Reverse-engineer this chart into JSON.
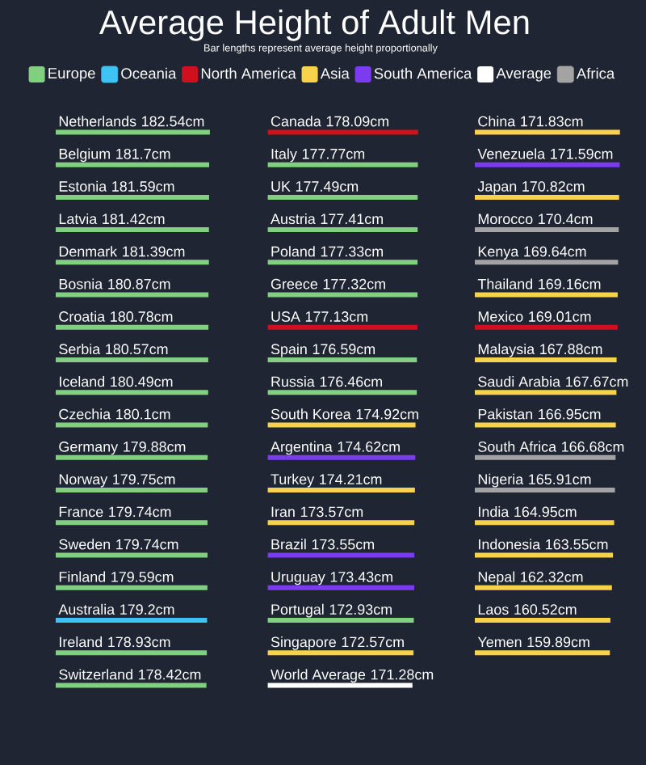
{
  "chart_data": [
    {
      "type": "bar",
      "orientation": "horizontal",
      "tick_labels": "y",
      "categories": [
        "Netherlands",
        "Belgium",
        "Estonia",
        "Latvia",
        "Denmark",
        "Bosnia",
        "Croatia",
        "Serbia",
        "Iceland",
        "Czechia",
        "Germany",
        "Norway",
        "France",
        "Sweden",
        "Finland",
        "Australia",
        "Ireland",
        "Switzerland"
      ],
      "series": [
        {
          "color": "#80d07f",
          "values": [
            182.54,
            181.7,
            181.59,
            181.42,
            181.39,
            180.87,
            180.78,
            180.57,
            180.49,
            180.1,
            179.88,
            179.75,
            179.74,
            179.74,
            179.59,
            null,
            178.93,
            178.42
          ],
          "value_labels": [
            "182.54cm",
            "181.7cm",
            "181.59cm",
            "181.42cm",
            "181.39cm",
            "180.87cm",
            "180.78cm",
            "180.57cm",
            "180.49cm",
            "180.1cm",
            "179.88cm",
            "179.75cm",
            "179.74cm",
            "179.74cm",
            "179.59cm",
            null,
            "178.93cm",
            "178.42cm"
          ]
        },
        {
          "color": "#3ec3f5",
          "values": [
            null,
            null,
            null,
            null,
            null,
            null,
            null,
            null,
            null,
            null,
            null,
            null,
            null,
            null,
            null,
            179.2,
            null,
            null
          ],
          "value_labels": [
            null,
            null,
            null,
            null,
            null,
            null,
            null,
            null,
            null,
            null,
            null,
            null,
            null,
            null,
            null,
            "179.2cm",
            null,
            null
          ]
        }
      ]
    },
    {
      "type": "bar",
      "orientation": "horizontal",
      "title": "Average Height of Adult Men",
      "subtitle": "Bar lengths represent average height proportionally",
      "legend": "top",
      "tick_labels": "y",
      "categories": [
        "Canada",
        "Italy",
        "UK",
        "Austria",
        "Poland",
        "Greece",
        "USA",
        "Spain",
        "Russia",
        "South Korea",
        "Argentina",
        "Turkey",
        "Iran",
        "Brazil",
        "Uruguay",
        "Portugal",
        "Singapore",
        "World Average"
      ],
      "series": [
        {
          "name": "Europe",
          "color": "#80d07f",
          "values": [
            null,
            177.77,
            177.49,
            177.41,
            177.33,
            177.32,
            null,
            176.59,
            176.46,
            null,
            null,
            null,
            null,
            null,
            null,
            172.93,
            null,
            null
          ],
          "value_labels": [
            null,
            "177.77cm",
            "177.49cm",
            "177.41cm",
            "177.33cm",
            "177.32cm",
            null,
            "176.59cm",
            "176.46cm",
            null,
            null,
            null,
            null,
            null,
            null,
            "172.93cm",
            null,
            null
          ]
        },
        {
          "name": "Oceania",
          "color": "#3ec3f5",
          "values": [
            null,
            null,
            null,
            null,
            null,
            null,
            null,
            null,
            null,
            null,
            null,
            null,
            null,
            null,
            null,
            null,
            null,
            null
          ]
        },
        {
          "name": "North America",
          "color": "#d0101c",
          "values": [
            178.09,
            null,
            null,
            null,
            null,
            null,
            177.13,
            null,
            null,
            null,
            null,
            null,
            null,
            null,
            null,
            null,
            null,
            null
          ],
          "value_labels": [
            "178.09cm",
            null,
            null,
            null,
            null,
            null,
            "177.13cm",
            null,
            null,
            null,
            null,
            null,
            null,
            null,
            null,
            null,
            null,
            null
          ]
        },
        {
          "name": "Asia",
          "color": "#f8d24a",
          "values": [
            null,
            null,
            null,
            null,
            null,
            null,
            null,
            null,
            null,
            174.92,
            null,
            174.21,
            173.57,
            null,
            null,
            null,
            172.57,
            null
          ],
          "value_labels": [
            null,
            null,
            null,
            null,
            null,
            null,
            null,
            null,
            null,
            "174.92cm",
            null,
            "174.21cm",
            "173.57cm",
            null,
            null,
            null,
            "172.57cm",
            null
          ]
        },
        {
          "name": "South America",
          "color": "#7b3cf0",
          "values": [
            null,
            null,
            null,
            null,
            null,
            null,
            null,
            null,
            null,
            null,
            174.62,
            null,
            null,
            173.55,
            173.43,
            null,
            null,
            null
          ],
          "value_labels": [
            null,
            null,
            null,
            null,
            null,
            null,
            null,
            null,
            null,
            null,
            "174.62cm",
            null,
            null,
            "173.55cm",
            "173.43cm",
            null,
            null,
            null
          ]
        },
        {
          "name": "Average",
          "color": "#ffffff",
          "values": [
            null,
            null,
            null,
            null,
            null,
            null,
            null,
            null,
            null,
            null,
            null,
            null,
            null,
            null,
            null,
            null,
            null,
            171.28
          ],
          "value_labels": [
            null,
            null,
            null,
            null,
            null,
            null,
            null,
            null,
            null,
            null,
            null,
            null,
            null,
            null,
            null,
            null,
            null,
            "171.28cm"
          ]
        },
        {
          "name": "Africa",
          "color": "#a3a3a3",
          "values": [
            null,
            null,
            null,
            null,
            null,
            null,
            null,
            null,
            null,
            null,
            null,
            null,
            null,
            null,
            null,
            null,
            null,
            null
          ]
        }
      ]
    },
    {
      "type": "bar",
      "orientation": "horizontal",
      "tick_labels": "y",
      "categories": [
        "China",
        "Venezuela",
        "Japan",
        "Morocco",
        "Kenya",
        "Thailand",
        "Mexico",
        "Malaysia",
        "Saudi Arabia",
        "Pakistan",
        "South Africa",
        "Nigeria",
        "India",
        "Indonesia",
        "Nepal",
        "Laos",
        "Yemen"
      ],
      "series": [
        {
          "color": "#d0101c",
          "values": [
            null,
            null,
            null,
            null,
            null,
            null,
            169.01,
            null,
            null,
            null,
            null,
            null,
            null,
            null,
            null,
            null,
            null
          ],
          "value_labels": [
            null,
            null,
            null,
            null,
            null,
            null,
            "169.01cm",
            null,
            null,
            null,
            null,
            null,
            null,
            null,
            null,
            null,
            null
          ]
        },
        {
          "color": "#f8d24a",
          "values": [
            171.83,
            null,
            170.82,
            null,
            null,
            169.16,
            null,
            167.88,
            167.67,
            166.95,
            null,
            null,
            164.95,
            163.55,
            162.32,
            160.52,
            159.89
          ],
          "value_labels": [
            "171.83cm",
            null,
            "170.82cm",
            null,
            null,
            "169.16cm",
            null,
            "167.88cm",
            "167.67cm",
            "166.95cm",
            null,
            null,
            "164.95cm",
            "163.55cm",
            "162.32cm",
            "160.52cm",
            "159.89cm"
          ]
        },
        {
          "color": "#7b3cf0",
          "values": [
            null,
            171.59,
            null,
            null,
            null,
            null,
            null,
            null,
            null,
            null,
            null,
            null,
            null,
            null,
            null,
            null,
            null
          ],
          "value_labels": [
            null,
            "171.59cm",
            null,
            null,
            null,
            null,
            null,
            null,
            null,
            null,
            null,
            null,
            null,
            null,
            null,
            null,
            null
          ]
        },
        {
          "color": "#a3a3a3",
          "values": [
            null,
            null,
            null,
            170.4,
            169.64,
            null,
            null,
            null,
            null,
            null,
            166.68,
            165.91,
            null,
            null,
            null,
            null,
            null
          ],
          "value_labels": [
            null,
            null,
            null,
            "170.4cm",
            "169.64cm",
            null,
            null,
            null,
            null,
            null,
            "166.68cm",
            "165.91cm",
            null,
            null,
            null,
            null,
            null
          ]
        }
      ]
    }
  ]
}
